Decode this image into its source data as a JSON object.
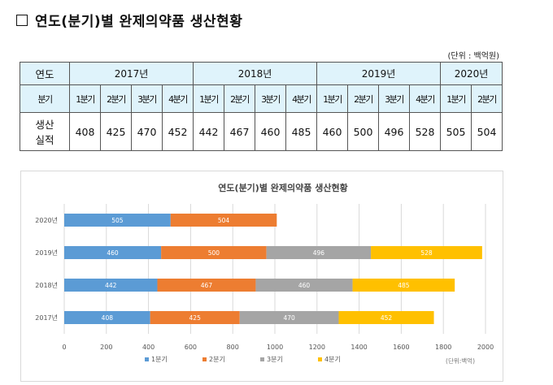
{
  "heading": "연도(분기)별 완제의약품 생산현황",
  "unit": "(단위 : 백억원)",
  "table": {
    "year_label": "연도",
    "quarter_label": "분기",
    "years": [
      {
        "year": "2017년",
        "quarters": [
          "1분기",
          "2분기",
          "3분기",
          "4분기"
        ]
      },
      {
        "year": "2018년",
        "quarters": [
          "1분기",
          "2분기",
          "3분기",
          "4분기"
        ]
      },
      {
        "year": "2019년",
        "quarters": [
          "1분기",
          "2분기",
          "3분기",
          "4분기"
        ]
      },
      {
        "year": "2020년",
        "quarters": [
          "1분기",
          "2분기"
        ]
      }
    ],
    "row_label_lines": [
      "생산",
      "실적"
    ],
    "values": [
      "408",
      "425",
      "470",
      "452",
      "442",
      "467",
      "460",
      "485",
      "460",
      "500",
      "496",
      "528",
      "505",
      "504"
    ]
  },
  "chart_data": {
    "type": "bar",
    "orientation": "horizontal",
    "stacked": true,
    "title": "연도(분기)별 완제의약품 생산현황",
    "categories": [
      "2017년",
      "2018년",
      "2019년",
      "2020년"
    ],
    "series": [
      {
        "name": "1분기",
        "color": "#5b9bd5",
        "values": [
          408,
          442,
          460,
          505
        ]
      },
      {
        "name": "2분기",
        "color": "#ed7d31",
        "values": [
          425,
          467,
          500,
          504
        ]
      },
      {
        "name": "3분기",
        "color": "#a5a5a5",
        "values": [
          470,
          460,
          496,
          null
        ]
      },
      {
        "name": "4분기",
        "color": "#ffc000",
        "values": [
          452,
          485,
          528,
          null
        ]
      }
    ],
    "xlim": [
      0,
      2000
    ],
    "xticks": [
      "0",
      "200",
      "400",
      "600",
      "800",
      "1000",
      "1200",
      "1400",
      "1600",
      "1800",
      "2000"
    ],
    "grid": true,
    "legend": "bottom",
    "unit_note": "(단위:백억)"
  }
}
